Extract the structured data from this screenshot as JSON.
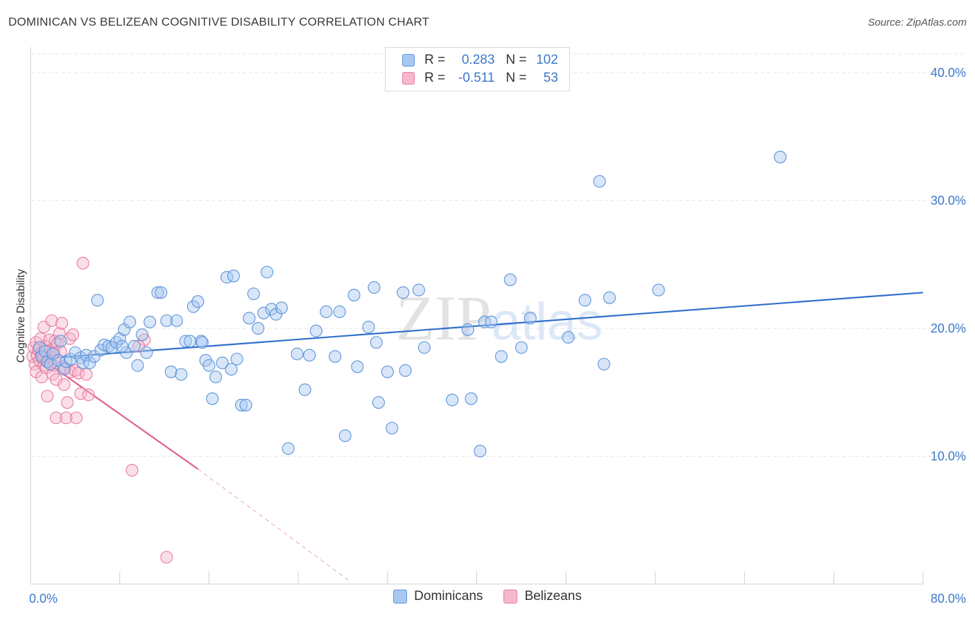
{
  "header": {
    "title": "DOMINICAN VS BELIZEAN COGNITIVE DISABILITY CORRELATION CHART",
    "source": "Source: ZipAtlas.com"
  },
  "legend": {
    "rows": [
      {
        "r_label": "R =",
        "r_value": "0.283",
        "n_label": "N =",
        "n_value": "102"
      },
      {
        "r_label": "R =",
        "r_value": "-0.511",
        "n_label": "N =",
        "n_value": "53"
      }
    ]
  },
  "bottom_legend": {
    "items": [
      {
        "label": "Dominicans"
      },
      {
        "label": "Belizeans"
      }
    ]
  },
  "colors": {
    "blue_fill": "#a9c8f0",
    "blue_stroke": "#5b93d9",
    "blue_line": "#2f6fcc",
    "pink_fill": "#f6b8cc",
    "pink_stroke": "#e8799d",
    "pink_line": "#e0608c",
    "tick_text": "#3b78c9",
    "grid": "#e6e6e6"
  },
  "chart_data": {
    "type": "scatter",
    "title": "DOMINICAN VS BELIZEAN COGNITIVE DISABILITY CORRELATION CHART",
    "xlabel": "",
    "ylabel": "Cognitive Disability",
    "xlim": [
      0,
      80
    ],
    "ylim": [
      0,
      42
    ],
    "x_tick_labels": [
      "0.0%",
      "80.0%"
    ],
    "y_ticks": [
      10,
      20,
      30,
      40
    ],
    "y_tick_labels": [
      "10.0%",
      "20.0%",
      "30.0%",
      "40.0%"
    ],
    "grid": true,
    "watermark": "ZIPatlas",
    "series": [
      {
        "name": "Dominicans",
        "r": 0.283,
        "n": 102,
        "trend": {
          "x": [
            0.5,
            80
          ],
          "y": [
            17.6,
            22.8
          ]
        },
        "points": [
          [
            0.8,
            18.5
          ],
          [
            1.0,
            17.8
          ],
          [
            1.3,
            18.2
          ],
          [
            1.5,
            17.4
          ],
          [
            1.8,
            17.2
          ],
          [
            2.0,
            18.0
          ],
          [
            2.5,
            17.5
          ],
          [
            2.7,
            19.0
          ],
          [
            3.0,
            16.8
          ],
          [
            3.2,
            17.4
          ],
          [
            3.6,
            17.6
          ],
          [
            4.0,
            18.1
          ],
          [
            4.5,
            17.7
          ],
          [
            4.7,
            17.3
          ],
          [
            5.0,
            17.9
          ],
          [
            5.3,
            17.3
          ],
          [
            5.7,
            17.8
          ],
          [
            6.0,
            22.2
          ],
          [
            6.3,
            18.3
          ],
          [
            6.6,
            18.7
          ],
          [
            7.0,
            18.6
          ],
          [
            7.3,
            18.5
          ],
          [
            7.7,
            18.9
          ],
          [
            8.0,
            19.2
          ],
          [
            8.4,
            19.9
          ],
          [
            8.6,
            18.1
          ],
          [
            8.9,
            20.5
          ],
          [
            9.3,
            18.6
          ],
          [
            9.6,
            17.1
          ],
          [
            10.0,
            19.5
          ],
          [
            10.4,
            18.1
          ],
          [
            10.7,
            20.5
          ],
          [
            11.4,
            22.8
          ],
          [
            11.7,
            22.8
          ],
          [
            12.2,
            20.6
          ],
          [
            12.6,
            16.6
          ],
          [
            13.1,
            20.6
          ],
          [
            13.5,
            16.4
          ],
          [
            13.9,
            19.0
          ],
          [
            14.3,
            19.0
          ],
          [
            14.6,
            21.7
          ],
          [
            15.0,
            22.1
          ],
          [
            15.3,
            19.0
          ],
          [
            15.7,
            17.5
          ],
          [
            16.0,
            17.1
          ],
          [
            16.3,
            14.5
          ],
          [
            16.6,
            16.2
          ],
          [
            17.2,
            17.3
          ],
          [
            17.6,
            24.0
          ],
          [
            18.0,
            16.8
          ],
          [
            18.2,
            24.1
          ],
          [
            18.5,
            17.6
          ],
          [
            18.9,
            14.0
          ],
          [
            19.3,
            14.0
          ],
          [
            19.6,
            20.8
          ],
          [
            20.0,
            22.7
          ],
          [
            20.4,
            20.0
          ],
          [
            20.9,
            21.2
          ],
          [
            21.2,
            24.4
          ],
          [
            21.6,
            21.5
          ],
          [
            22.0,
            21.1
          ],
          [
            22.5,
            21.6
          ],
          [
            23.1,
            10.6
          ],
          [
            23.9,
            18.0
          ],
          [
            24.6,
            15.2
          ],
          [
            25.0,
            17.9
          ],
          [
            25.6,
            19.8
          ],
          [
            26.5,
            21.3
          ],
          [
            27.3,
            17.8
          ],
          [
            27.7,
            21.3
          ],
          [
            28.2,
            11.6
          ],
          [
            29.0,
            22.6
          ],
          [
            29.3,
            17.0
          ],
          [
            30.3,
            20.1
          ],
          [
            30.8,
            23.2
          ],
          [
            31.0,
            18.9
          ],
          [
            31.2,
            14.2
          ],
          [
            32.0,
            16.6
          ],
          [
            32.4,
            12.2
          ],
          [
            33.4,
            22.8
          ],
          [
            33.6,
            16.7
          ],
          [
            34.8,
            23.0
          ],
          [
            35.3,
            18.5
          ],
          [
            37.8,
            14.4
          ],
          [
            39.2,
            19.9
          ],
          [
            39.5,
            14.5
          ],
          [
            40.3,
            10.4
          ],
          [
            40.7,
            20.5
          ],
          [
            41.3,
            20.5
          ],
          [
            42.2,
            17.8
          ],
          [
            43.0,
            23.8
          ],
          [
            44.0,
            18.5
          ],
          [
            44.8,
            20.8
          ],
          [
            48.2,
            19.3
          ],
          [
            49.7,
            22.2
          ],
          [
            51.0,
            31.5
          ],
          [
            51.4,
            17.2
          ],
          [
            51.9,
            22.4
          ],
          [
            56.3,
            23.0
          ],
          [
            67.2,
            33.4
          ],
          [
            15.4,
            18.9
          ],
          [
            8.2,
            18.6
          ]
        ]
      },
      {
        "name": "Belizeans",
        "r": -0.511,
        "n": 53,
        "trend": {
          "x": [
            0.2,
            15.0
          ],
          "y": [
            18.1,
            9.0
          ]
        },
        "trend_dashed": {
          "x": [
            15.0,
            28.5
          ],
          "y": [
            9.0,
            0.3
          ]
        },
        "points": [
          [
            0.2,
            17.8
          ],
          [
            0.3,
            18.5
          ],
          [
            0.4,
            17.2
          ],
          [
            0.5,
            18.9
          ],
          [
            0.5,
            16.6
          ],
          [
            0.6,
            17.9
          ],
          [
            0.7,
            18.3
          ],
          [
            0.8,
            17.5
          ],
          [
            0.9,
            19.2
          ],
          [
            1.0,
            16.2
          ],
          [
            1.0,
            18.0
          ],
          [
            1.1,
            17.6
          ],
          [
            1.2,
            20.1
          ],
          [
            1.2,
            17.1
          ],
          [
            1.3,
            18.6
          ],
          [
            1.4,
            16.9
          ],
          [
            1.5,
            14.7
          ],
          [
            1.5,
            18.2
          ],
          [
            1.6,
            17.4
          ],
          [
            1.7,
            19.1
          ],
          [
            1.8,
            17.8
          ],
          [
            1.9,
            20.6
          ],
          [
            2.0,
            16.4
          ],
          [
            2.0,
            18.4
          ],
          [
            2.1,
            17.1
          ],
          [
            2.2,
            19.0
          ],
          [
            2.3,
            16.0
          ],
          [
            2.3,
            13.0
          ],
          [
            2.4,
            18.8
          ],
          [
            2.5,
            17.5
          ],
          [
            2.6,
            19.6
          ],
          [
            2.7,
            18.2
          ],
          [
            2.8,
            20.4
          ],
          [
            2.9,
            17.0
          ],
          [
            3.0,
            15.6
          ],
          [
            3.1,
            16.9
          ],
          [
            3.2,
            13.0
          ],
          [
            3.3,
            14.2
          ],
          [
            3.5,
            19.2
          ],
          [
            3.6,
            16.6
          ],
          [
            3.8,
            19.5
          ],
          [
            4.0,
            16.7
          ],
          [
            4.1,
            13.0
          ],
          [
            4.3,
            16.5
          ],
          [
            4.5,
            14.9
          ],
          [
            4.7,
            25.1
          ],
          [
            5.0,
            16.4
          ],
          [
            5.2,
            14.8
          ],
          [
            9.1,
            8.9
          ],
          [
            10.2,
            19.1
          ],
          [
            12.2,
            2.1
          ],
          [
            9.7,
            18.6
          ],
          [
            2.1,
            18.1
          ]
        ]
      }
    ]
  }
}
